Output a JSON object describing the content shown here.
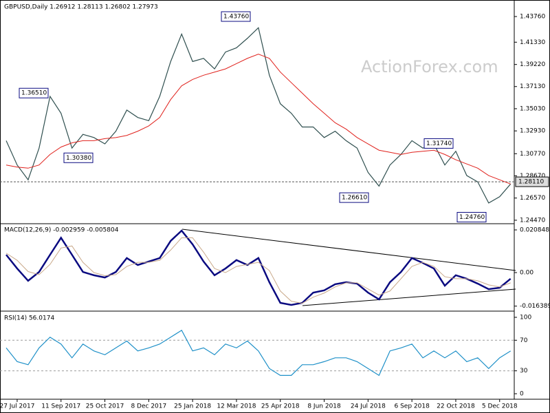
{
  "chart_data": [
    {
      "type": "line",
      "title": "GBPUSD,Daily  1.26912 1.28113 1.26802 1.27973",
      "watermark": "ActionForex.com",
      "ylim": [
        1.2427,
        1.45
      ],
      "yticks": [
        {
          "value": 1.4376,
          "label": "1.43760"
        },
        {
          "value": 1.4133,
          "label": "1.41330"
        },
        {
          "value": 1.3922,
          "label": "1.39220"
        },
        {
          "value": 1.3713,
          "label": "1.37130"
        },
        {
          "value": 1.3503,
          "label": "1.35030"
        },
        {
          "value": 1.3293,
          "label": "1.32930"
        },
        {
          "value": 1.3077,
          "label": "1.30770"
        },
        {
          "value": 1.2867,
          "label": "1.28670"
        },
        {
          "value": 1.2657,
          "label": "1.26570"
        },
        {
          "value": 1.2447,
          "label": "1.24470"
        }
      ],
      "current": {
        "value": 1.2811,
        "label": "1.28110"
      },
      "annotations": [
        {
          "value": 1.4376,
          "label": "1.43760"
        },
        {
          "value": 1.3651,
          "label": "1.36510"
        },
        {
          "value": 1.3038,
          "label": "1.30380"
        },
        {
          "value": 1.2661,
          "label": "1.26610"
        },
        {
          "value": 1.3174,
          "label": "1.31740"
        },
        {
          "value": 1.2476,
          "label": "1.24760"
        }
      ],
      "series": [
        {
          "color": "#2f4f4f",
          "values": [
            1.32,
            1.297,
            1.283,
            1.313,
            1.362,
            1.346,
            1.313,
            1.326,
            1.323,
            1.317,
            1.329,
            1.349,
            1.342,
            1.339,
            1.362,
            1.395,
            1.421,
            1.395,
            1.398,
            1.388,
            1.404,
            1.408,
            1.417,
            1.427,
            1.382,
            1.355,
            1.346,
            1.333,
            1.333,
            1.323,
            1.329,
            1.32,
            1.313,
            1.29,
            1.277,
            1.297,
            1.307,
            1.32,
            1.313,
            1.317,
            1.297,
            1.31,
            1.287,
            1.281,
            1.261,
            1.267,
            1.279
          ]
        },
        {
          "color": "#e0201b",
          "values": [
            1.297,
            1.295,
            1.294,
            1.297,
            1.307,
            1.314,
            1.318,
            1.32,
            1.32,
            1.322,
            1.323,
            1.325,
            1.329,
            1.334,
            1.342,
            1.359,
            1.372,
            1.378,
            1.382,
            1.385,
            1.388,
            1.393,
            1.398,
            1.402,
            1.398,
            1.385,
            1.375,
            1.365,
            1.355,
            1.346,
            1.337,
            1.331,
            1.323,
            1.317,
            1.311,
            1.309,
            1.307,
            1.309,
            1.31,
            1.311,
            1.307,
            1.302,
            1.298,
            1.294,
            1.287,
            1.283,
            1.279
          ]
        }
      ]
    },
    {
      "type": "line",
      "title": "MACD(12,26,9) -0.002959 -0.005804",
      "ylim": [
        -0.018157,
        0.023202
      ],
      "yticks": [
        0.020848,
        {
          "value": 0,
          "label": "0.00"
        },
        -0.016389
      ],
      "series": [
        {
          "color": "#0a0a80",
          "values": [
            0.0087,
            0.002,
            -0.004,
            0.0003,
            0.0087,
            0.017,
            0.0087,
            0.0003,
            -0.0013,
            -0.0024,
            0.0003,
            0.0071,
            0.0037,
            0.0054,
            0.0071,
            0.0155,
            0.0205,
            0.0138,
            0.0054,
            -0.0013,
            0.002,
            0.0061,
            0.0037,
            0.0071,
            -0.0047,
            -0.0148,
            -0.0158,
            -0.0148,
            -0.0098,
            -0.0087,
            -0.0057,
            -0.0047,
            -0.0054,
            -0.0098,
            -0.0131,
            -0.0047,
            0.0003,
            0.0071,
            0.0047,
            0.002,
            -0.0064,
            -0.0013,
            -0.003,
            -0.0054,
            -0.0081,
            -0.0074,
            -0.003
          ]
        },
        {
          "color": "#c9a98a",
          "values": [
            0.0095,
            0.006,
            0.0005,
            -0.001,
            0.004,
            0.012,
            0.013,
            0.005,
            0.0,
            -0.0015,
            -0.001,
            0.003,
            0.005,
            0.005,
            0.006,
            0.011,
            0.017,
            0.017,
            0.01,
            0.002,
            0.0,
            0.003,
            0.004,
            0.005,
            0.001,
            -0.009,
            -0.014,
            -0.015,
            -0.012,
            -0.01,
            -0.007,
            -0.005,
            -0.005,
            -0.008,
            -0.011,
            -0.009,
            -0.003,
            0.003,
            0.005,
            0.003,
            -0.002,
            -0.003,
            -0.003,
            -0.004,
            -0.006,
            -0.007,
            -0.005
          ]
        }
      ]
    },
    {
      "type": "line",
      "title": "RSI(14) 56.0174",
      "ylim": [
        -7.2,
        105.4
      ],
      "yticks": [
        100,
        70,
        30,
        0
      ],
      "levels": [
        70,
        30
      ],
      "categories": [
        null,
        "27 Jul 2017",
        null,
        null,
        null,
        "11 Sep 2017",
        null,
        null,
        null,
        "25 Oct 2017",
        null,
        null,
        null,
        "8 Dec 2017",
        null,
        null,
        null,
        "25 Jan 2018",
        null,
        null,
        null,
        "12 Mar 2018",
        null,
        null,
        null,
        "25 Apr 2018",
        null,
        null,
        null,
        "8 Jun 2018",
        null,
        null,
        null,
        "24 Jul 2018",
        null,
        null,
        null,
        "6 Sep 2018",
        null,
        null,
        null,
        "22 Oct 2018",
        null,
        null,
        null,
        "5 Dec 2018",
        null
      ],
      "series": [
        {
          "color": "#1e90c8",
          "values": [
            60,
            42,
            38,
            60,
            74,
            65,
            47,
            65,
            56,
            51,
            60,
            69,
            56,
            60,
            65,
            74,
            83,
            56,
            60,
            51,
            65,
            60,
            69,
            56,
            33,
            24,
            24,
            38,
            38,
            42,
            47,
            47,
            42,
            33,
            24,
            56,
            60,
            65,
            47,
            56,
            47,
            56,
            42,
            47,
            33,
            47,
            56
          ]
        }
      ]
    }
  ]
}
